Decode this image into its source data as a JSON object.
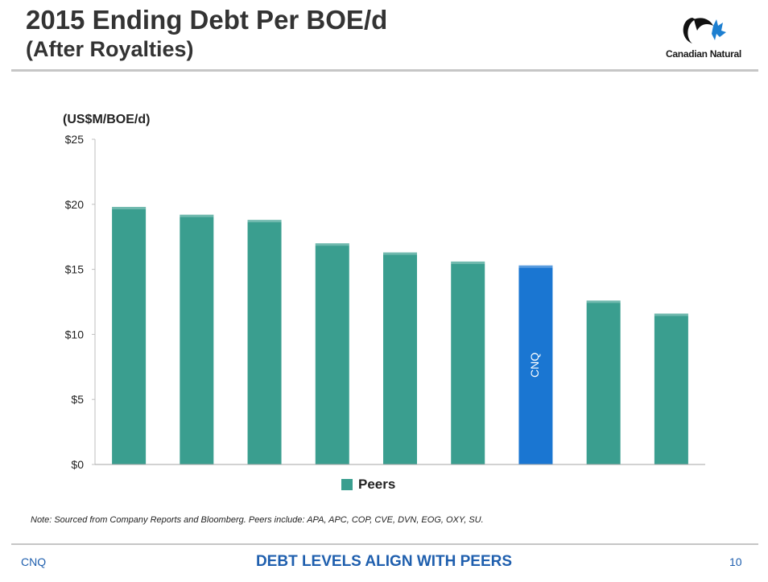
{
  "slide": {
    "title_line1": "2015 Ending Debt Per BOE/d",
    "title_line2": "(After Royalties)",
    "logo_text": "Canadian Natural",
    "note": "Note: Sourced from Company Reports and Bloomberg. Peers include: APA, APC, COP, CVE, DVN, EOG, OXY, SU.",
    "footer_left": "CNQ",
    "footer_center": "DEBT LEVELS ALIGN WITH PEERS",
    "page_number": "10"
  },
  "colors": {
    "peer_bar": "#3a9e8f",
    "highlight_bar": "#1a76d2",
    "footer_text": "#1f5fae"
  },
  "chart_data": {
    "type": "bar",
    "unit_label": "(US$M/BOE/d)",
    "categories": [
      "",
      "",
      "",
      "",
      "",
      "",
      "CNQ",
      "",
      ""
    ],
    "values": [
      19.8,
      19.2,
      18.8,
      17.0,
      16.3,
      15.6,
      15.3,
      12.6,
      11.6
    ],
    "highlight_index": 6,
    "ylim": [
      0,
      25
    ],
    "y_ticks": [
      0,
      5,
      10,
      15,
      20,
      25
    ],
    "y_tick_labels": [
      "$0",
      "$5",
      "$10",
      "$15",
      "$20",
      "$25"
    ],
    "legend": [
      "Peers"
    ],
    "legend_position": "bottom",
    "grid": false
  }
}
